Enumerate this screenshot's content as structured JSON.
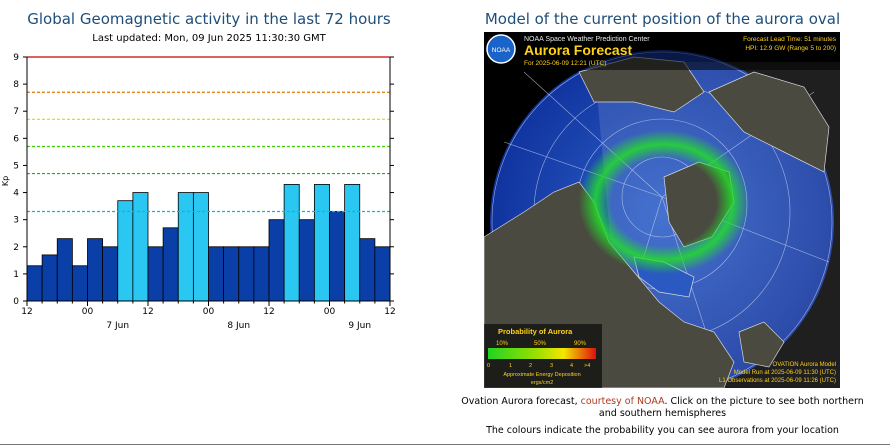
{
  "kp": {
    "title": "Global Geomagnetic activity in the last 72 hours",
    "updated": "Last updated: Mon, 09 Jun 2025 11:30:30 GMT"
  },
  "chart_data": {
    "type": "bar",
    "title": "Global Geomagnetic activity in the last 72 hours",
    "ylabel": "Kp",
    "ylim": [
      0,
      9
    ],
    "yticks": [
      "0",
      "1",
      "2",
      "3",
      "4",
      "5",
      "6",
      "7",
      "8",
      "9"
    ],
    "xticks": [
      "12",
      "00",
      "12",
      "00",
      "12",
      "00",
      "12"
    ],
    "day_labels": [
      "7 Jun",
      "8 Jun",
      "9 Jun"
    ],
    "values": [
      1.3,
      1.7,
      2.3,
      1.3,
      2.3,
      2.0,
      3.7,
      4.0,
      2.0,
      2.7,
      4.0,
      4.0,
      2.0,
      2.0,
      2.0,
      2.0,
      3.0,
      4.3,
      3.0,
      4.3,
      3.3,
      4.3,
      2.3,
      2.0
    ],
    "bar_colors": {
      "low": "#0b3fa8",
      "elevated": "#29c7f2"
    },
    "threshold_lines": [
      {
        "value": 9.0,
        "color": "#cc0000"
      },
      {
        "value": 7.7,
        "color": "#e07800"
      },
      {
        "value": 6.7,
        "color": "#e8e000"
      },
      {
        "value": 5.7,
        "color": "#44cc00"
      },
      {
        "value": 4.7,
        "color": "#22aa22"
      },
      {
        "value": 3.3,
        "color": "#00bcd4"
      }
    ]
  },
  "aurora": {
    "title": "Model of the current position of the aurora oval",
    "center": "NOAA Space Weather Prediction Center",
    "heading": "Aurora Forecast",
    "forecast_for": "For 2025-06-09 12:21 (UTC)",
    "lead_time": "Forecast Lead Time:  51 minutes",
    "hpi": "HPI:  12.9 GW (Range 5 to 200)",
    "noaa_badge": "NOAA",
    "legend": {
      "title": "Probability of Aurora",
      "pct_labels": [
        "10%",
        "50%",
        "90%"
      ],
      "scale_labels": [
        "0",
        "1",
        "2",
        "3",
        "4",
        ">4"
      ],
      "caption1": "Approximate Energy Deposition",
      "caption2": "ergs/cm2"
    },
    "model": "OVATION Aurora Model",
    "model_run": "Model Run at 2025-06-09 11:30 (UTC)",
    "observations": "L1 Observations at 2025-06-09 11:26 (UTC)"
  },
  "caption": {
    "text_before": "Ovation Aurora forecast, ",
    "link": "courtesy of NOAA",
    "text_after": ". Click on the picture to see both northern and southern hemispheres",
    "line2": "The colours indicate the probability you can see aurora from your location"
  }
}
